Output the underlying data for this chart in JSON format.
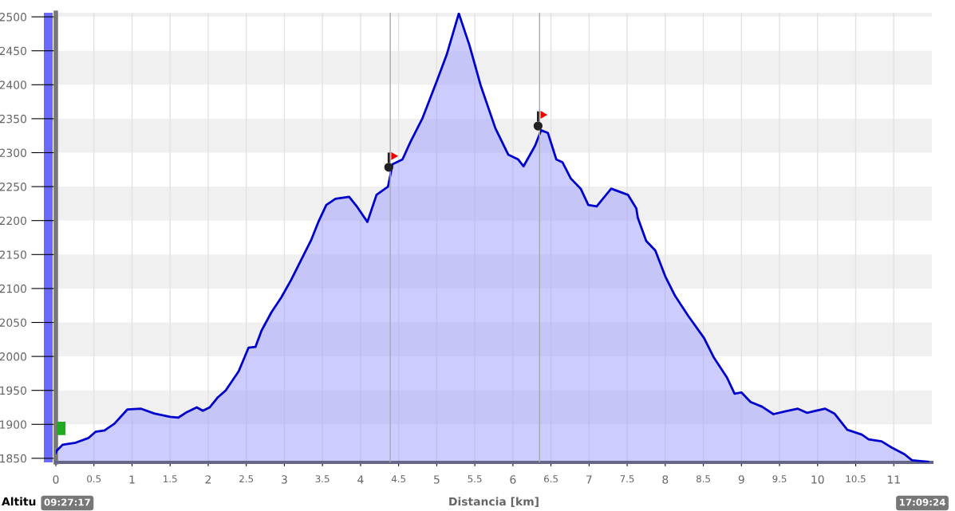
{
  "chart_data": {
    "type": "area",
    "xlabel": "Distancia [km]",
    "ylabel": "Altitu",
    "annotations": [
      "09:27:17",
      "17:09:24"
    ],
    "series": [
      {
        "color": "#0000cc",
        "x": [
          0,
          0.01,
          0.09,
          0.26,
          0.43,
          0.52,
          0.64,
          0.77,
          0.94,
          1.12,
          1.29,
          1.5,
          1.61,
          1.72,
          1.85,
          1.93,
          2.02,
          2.12,
          2.23,
          2.4,
          2.53,
          2.62,
          2.7,
          2.83,
          2.96,
          3.09,
          3.22,
          3.35,
          3.45,
          3.55,
          3.67,
          3.85,
          3.95,
          4.09,
          4.21,
          4.36,
          4.42,
          4.55,
          4.66,
          4.81,
          5.0,
          5.13,
          5.29,
          5.43,
          5.58,
          5.77,
          5.94,
          6.07,
          6.14,
          6.29,
          6.37,
          6.46,
          6.57,
          6.65,
          6.76,
          6.89,
          6.99,
          7.1,
          7.29,
          7.51,
          7.62,
          7.64,
          7.75,
          7.87,
          8.0,
          8.13,
          8.3,
          8.51,
          8.64,
          8.81,
          8.91,
          9.0,
          9.12,
          9.27,
          9.42,
          9.57,
          9.74,
          9.86,
          10.1,
          10.22,
          10.39,
          10.58,
          10.67,
          10.84,
          10.97,
          11.14,
          11.24,
          11.45
        ],
        "values": [
          1858,
          1861,
          1870,
          1873,
          1880,
          1889,
          1891,
          1901,
          1922,
          1923,
          1916,
          1911,
          1910,
          1918,
          1925,
          1920,
          1925,
          1939,
          1950,
          1978,
          2013,
          2014,
          2038,
          2065,
          2087,
          2113,
          2142,
          2171,
          2199,
          2223,
          2232,
          2235,
          2221,
          2198,
          2238,
          2250,
          2283,
          2290,
          2317,
          2350,
          2405,
          2444,
          2505,
          2458,
          2398,
          2336,
          2297,
          2290,
          2280,
          2310,
          2333,
          2329,
          2290,
          2286,
          2262,
          2247,
          2223,
          2221,
          2247,
          2238,
          2218,
          2204,
          2170,
          2156,
          2118,
          2089,
          2060,
          2027,
          1998,
          1969,
          1945,
          1947,
          1933,
          1926,
          1915,
          1919,
          1923,
          1917,
          1923,
          1916,
          1892,
          1885,
          1878,
          1875,
          1866,
          1856,
          1847,
          1845
        ]
      }
    ],
    "xlim": [
      0,
      11.5
    ],
    "ylim": [
      1844,
      2506
    ],
    "xticks": [
      0,
      0.5,
      1,
      1.5,
      2,
      2.5,
      3,
      3.5,
      4,
      4.5,
      5,
      5.5,
      6,
      6.5,
      7,
      7.5,
      8,
      8.5,
      9,
      9.5,
      10,
      10.5,
      11
    ],
    "yticks": [
      1850,
      1900,
      1950,
      2000,
      2050,
      2100,
      2150,
      2200,
      2250,
      2300,
      2350,
      2400,
      2450,
      2500
    ],
    "ref_lines": [
      {
        "axis": "x",
        "value": 4.39,
        "color": "#aaaaaa"
      },
      {
        "axis": "x",
        "value": 6.35,
        "color": "#aaaaaa"
      }
    ],
    "grid": true
  }
}
